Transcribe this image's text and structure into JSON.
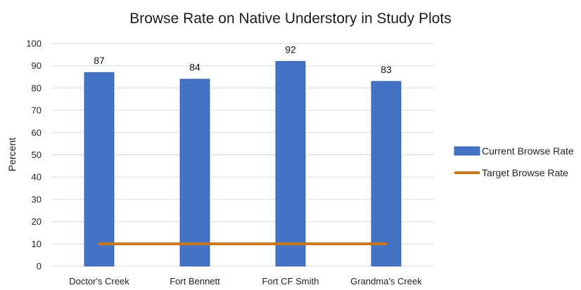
{
  "chart_data": {
    "type": "bar",
    "title": "Browse Rate on Native Understory in Study Plots",
    "xlabel": "",
    "ylabel": "Percent",
    "ylim": [
      0,
      100
    ],
    "yticks": [
      0,
      10,
      20,
      30,
      40,
      50,
      60,
      70,
      80,
      90,
      100
    ],
    "grid": true,
    "legend_position": "right",
    "categories": [
      "Doctor's Creek",
      "Fort Bennett",
      "Fort CF Smith",
      "Grandma's Creek"
    ],
    "series": [
      {
        "name": "Current Browse Rate",
        "kind": "bar",
        "color": "#4472c4",
        "values": [
          87,
          84,
          92,
          83
        ],
        "data_labels": [
          "87",
          "84",
          "92",
          "83"
        ]
      },
      {
        "name": "Target Browse Rate",
        "kind": "line",
        "color": "#c9771b",
        "values": [
          10,
          10,
          10,
          10
        ]
      }
    ]
  }
}
